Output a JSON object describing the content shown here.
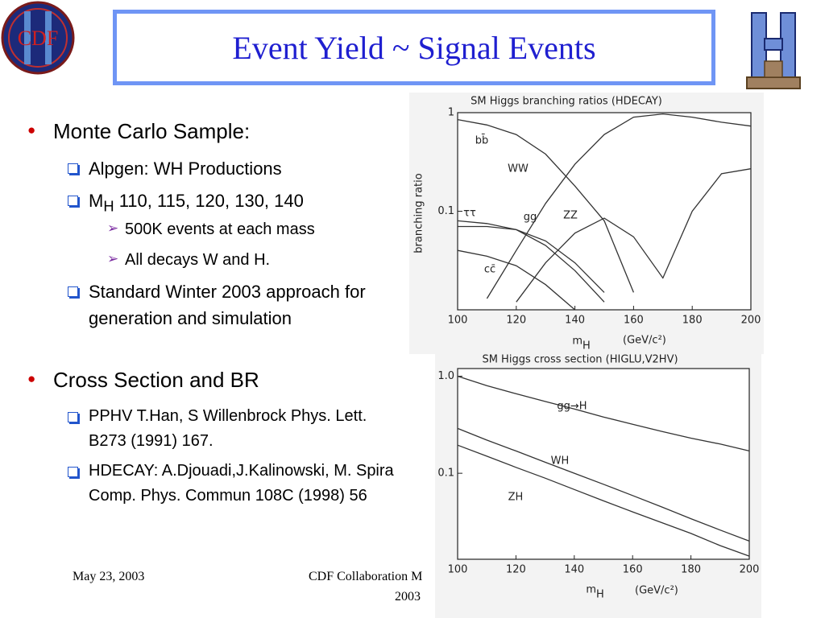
{
  "header": {
    "title": "Event Yield ~ Signal Events",
    "logo": "CDF"
  },
  "outline": [
    {
      "level": 1,
      "text": "Monte Carlo Sample:"
    },
    {
      "level": 2,
      "text": "Alpgen: WH Productions"
    },
    {
      "level": 2,
      "text": "M",
      "sub": "H",
      "tail": " 110, 115, 120, 130, 140"
    },
    {
      "level": 3,
      "text": "500K events at each mass"
    },
    {
      "level": 3,
      "text": "All decays W and H."
    },
    {
      "level": 2,
      "text": "Standard Winter 2003 approach for generation and simulation"
    },
    {
      "level": 1,
      "text": "Cross Section and BR"
    },
    {
      "level": 2,
      "text": "PPHV T.Han, S Willenbrock Phys. Lett. B273 (1991) 167."
    },
    {
      "level": 2,
      "text": "HDECAY: A.Djouadi,J.Kalinowski, M. Spira Comp. Phys. Commun 108C (1998) 56"
    }
  ],
  "footer": {
    "date": "May 23, 2003",
    "center": "CDF Collaboration M",
    "center2": "2003"
  },
  "figures": [
    {
      "type": "line",
      "title": "SM Higgs branching ratios (HDECAY)",
      "ylabel": "branching ratio",
      "xlabel": "m",
      "xlabel_sub": "H",
      "xlabel_unit": "(GeV/c²)",
      "log_y": true,
      "x": [
        100,
        110,
        120,
        130,
        140,
        150,
        160,
        170,
        180,
        190,
        200
      ],
      "xlim": [
        100,
        200
      ],
      "xticks": [
        100,
        120,
        140,
        160,
        180,
        200
      ],
      "ylim": [
        0.01,
        1
      ],
      "yticks": [
        0.1,
        1
      ],
      "series": [
        {
          "name": "bb̄",
          "color": "#333333",
          "values": [
            0.85,
            0.75,
            0.6,
            0.38,
            0.18,
            0.08,
            0.015,
            null,
            null,
            null,
            null
          ]
        },
        {
          "name": "WW",
          "color": "#333333",
          "values": [
            null,
            0.013,
            0.04,
            0.12,
            0.3,
            0.6,
            0.9,
            0.97,
            0.9,
            0.8,
            0.73
          ]
        },
        {
          "name": "ττ",
          "color": "#333333",
          "values": [
            0.08,
            0.075,
            0.065,
            0.045,
            0.025,
            0.012,
            null,
            null,
            null,
            null,
            null
          ]
        },
        {
          "name": "gg",
          "color": "#333333",
          "values": [
            0.07,
            0.07,
            0.065,
            0.05,
            0.03,
            0.015,
            null,
            null,
            null,
            null,
            null
          ]
        },
        {
          "name": "ZZ",
          "color": "#333333",
          "values": [
            null,
            null,
            0.012,
            0.03,
            0.06,
            0.085,
            0.055,
            0.021,
            0.1,
            0.24,
            0.27
          ]
        },
        {
          "name": "cc̄",
          "color": "#333333",
          "values": [
            0.04,
            0.035,
            0.028,
            0.018,
            0.01,
            null,
            null,
            null,
            null,
            null,
            null
          ]
        }
      ]
    },
    {
      "type": "line",
      "title": "SM Higgs cross section (HIGLU,V2HV)",
      "xlabel": "m",
      "xlabel_sub": "H",
      "xlabel_unit": "(GeV/c²)",
      "log_y": true,
      "x": [
        100,
        110,
        120,
        130,
        140,
        150,
        160,
        170,
        180,
        190,
        200
      ],
      "xlim": [
        100,
        200
      ],
      "xticks": [
        100,
        120,
        140,
        160,
        180,
        200
      ],
      "ylim": [
        0.013,
        1.2
      ],
      "yticks": [
        {
          "value": 0.1,
          "label": "0.1"
        },
        {
          "value": 1,
          "label": "1.0"
        }
      ],
      "series": [
        {
          "name": "gg→H",
          "color": "#333333",
          "values": [
            1.0,
            0.8,
            0.66,
            0.55,
            0.46,
            0.38,
            0.32,
            0.27,
            0.23,
            0.2,
            0.17
          ]
        },
        {
          "name": "WH",
          "color": "#333333",
          "values": [
            0.29,
            0.22,
            0.17,
            0.13,
            0.1,
            0.077,
            0.059,
            0.045,
            0.034,
            0.026,
            0.02
          ]
        },
        {
          "name": "ZH",
          "color": "#333333",
          "values": [
            0.195,
            0.15,
            0.115,
            0.089,
            0.068,
            0.052,
            0.04,
            0.031,
            0.024,
            0.018,
            0.014
          ]
        }
      ]
    }
  ]
}
